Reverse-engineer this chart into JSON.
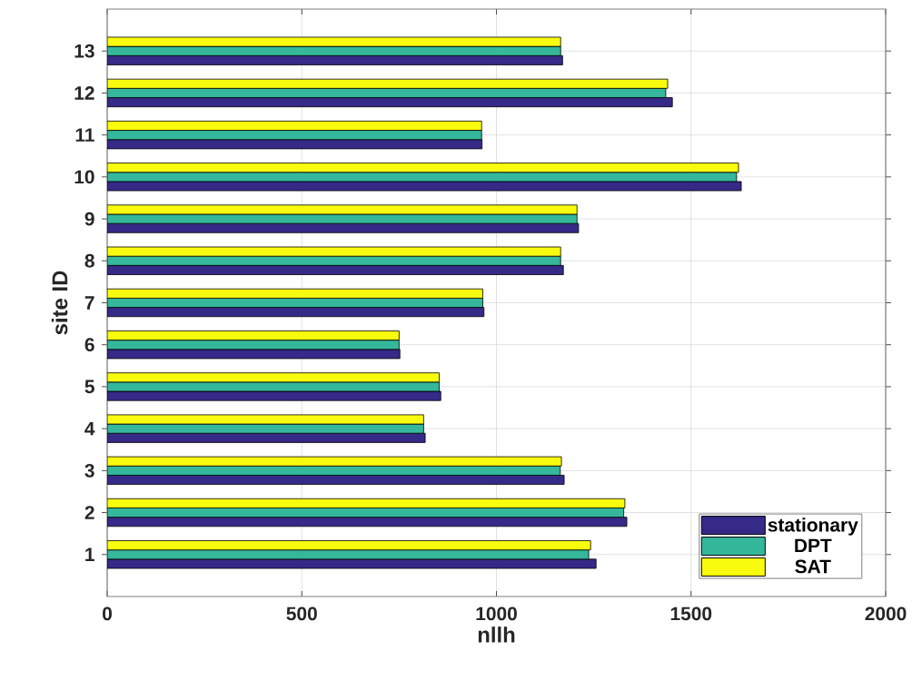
{
  "chart_data": {
    "type": "bar",
    "orientation": "horizontal",
    "xlabel": "nllh",
    "ylabel": "site ID",
    "categories": [
      "13",
      "12",
      "11",
      "10",
      "9",
      "8",
      "7",
      "6",
      "5",
      "4",
      "3",
      "2",
      "1"
    ],
    "series": [
      {
        "name": "stationary",
        "color": "#352a87",
        "values": [
          1170,
          1452,
          963,
          1629,
          1211,
          1172,
          968,
          752,
          857,
          817,
          1174,
          1335,
          1256
        ]
      },
      {
        "name": "DPT",
        "color": "#35b79b",
        "values": [
          1165,
          1435,
          962,
          1617,
          1207,
          1165,
          965,
          750,
          853,
          813,
          1164,
          1327,
          1237
        ]
      },
      {
        "name": "SAT",
        "color": "#f9fb0e",
        "values": [
          1165,
          1440,
          962,
          1622,
          1207,
          1165,
          965,
          750,
          853,
          813,
          1167,
          1330,
          1242
        ]
      }
    ],
    "xlim": [
      0,
      2000
    ],
    "xticks": [
      0,
      500,
      1000,
      1500,
      2000
    ],
    "grid": true,
    "legend": "bottom right"
  }
}
